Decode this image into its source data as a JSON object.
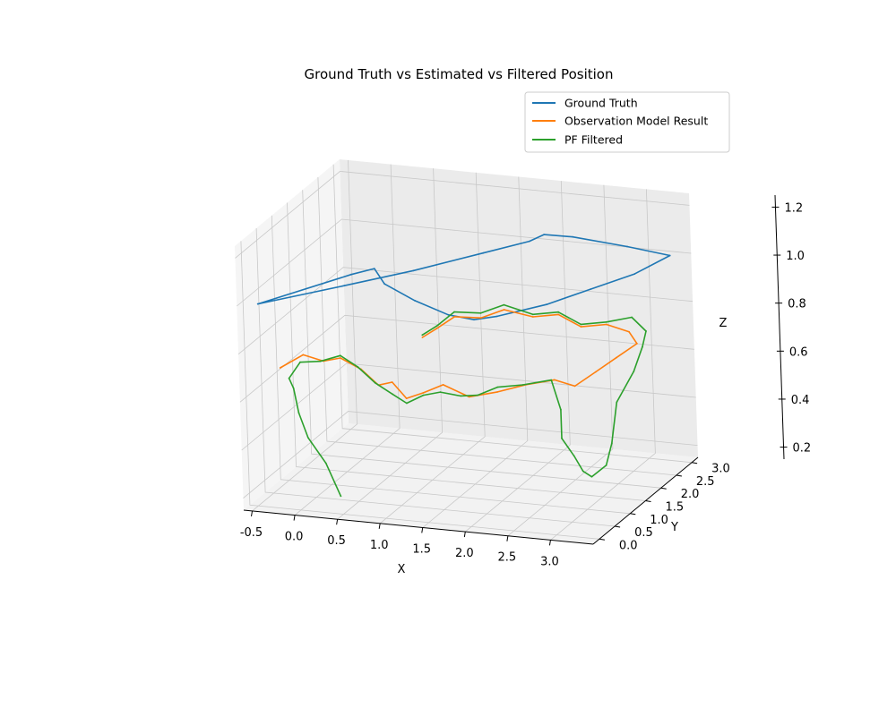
{
  "chart_data": {
    "type": "line",
    "projection": "3d",
    "title": "Ground Truth vs Estimated vs Filtered Position",
    "xlabel": "X",
    "ylabel": "Y",
    "zlabel": "Z",
    "xlim": [
      -0.6,
      3.5
    ],
    "ylim": [
      -0.2,
      3.2
    ],
    "zlim": [
      0.15,
      1.25
    ],
    "x_ticks": [
      "-0.5",
      "0.0",
      "0.5",
      "1.0",
      "1.5",
      "2.0",
      "2.5",
      "3.0"
    ],
    "y_ticks": [
      "0.0",
      "0.5",
      "1.0",
      "1.5",
      "2.0",
      "2.5",
      "3.0"
    ],
    "z_ticks": [
      "0.2",
      "0.4",
      "0.6",
      "0.8",
      "1.0",
      "1.2"
    ],
    "grid": true,
    "legend_position": "top-right",
    "series": [
      {
        "name": "Ground Truth",
        "color": "#1f77b4",
        "points": [
          {
            "x": -0.5,
            "y": 0.2,
            "z": 0.97
          },
          {
            "x": 0.3,
            "y": 0.8,
            "z": 1.01
          },
          {
            "x": 0.9,
            "y": 1.4,
            "z": 1.03
          },
          {
            "x": 1.5,
            "y": 2.0,
            "z": 1.06
          },
          {
            "x": 1.9,
            "y": 2.4,
            "z": 1.08
          },
          {
            "x": 2.0,
            "y": 2.6,
            "z": 1.09
          },
          {
            "x": 2.3,
            "y": 2.7,
            "z": 1.08
          },
          {
            "x": 2.9,
            "y": 2.8,
            "z": 1.05
          },
          {
            "x": 3.4,
            "y": 2.8,
            "z": 1.03
          },
          {
            "x": 3.2,
            "y": 2.2,
            "z": 1.01
          },
          {
            "x": 2.9,
            "y": 1.6,
            "z": 1.0
          },
          {
            "x": 2.6,
            "y": 1.0,
            "z": 0.99
          },
          {
            "x": 2.2,
            "y": 0.5,
            "z": 0.98
          },
          {
            "x": 2.0,
            "y": 0.3,
            "z": 0.98
          },
          {
            "x": 1.7,
            "y": 0.3,
            "z": 0.99
          },
          {
            "x": 1.2,
            "y": 0.6,
            "z": 1.0
          },
          {
            "x": 0.7,
            "y": 1.0,
            "z": 1.01
          },
          {
            "x": 0.4,
            "y": 1.5,
            "z": 1.01
          },
          {
            "x": 0.2,
            "y": 1.3,
            "z": 1.0
          },
          {
            "x": -0.5,
            "y": 0.2,
            "z": 0.97
          }
        ]
      },
      {
        "name": "Observation Model Result",
        "color": "#ff7f0e",
        "points": [
          {
            "x": -0.3,
            "y": 0.3,
            "z": 0.7
          },
          {
            "x": -0.1,
            "y": 0.5,
            "z": 0.74
          },
          {
            "x": 0.1,
            "y": 0.6,
            "z": 0.71
          },
          {
            "x": 0.3,
            "y": 0.6,
            "z": 0.73
          },
          {
            "x": 0.5,
            "y": 0.7,
            "z": 0.68
          },
          {
            "x": 0.7,
            "y": 0.7,
            "z": 0.62
          },
          {
            "x": 0.9,
            "y": 0.6,
            "z": 0.65
          },
          {
            "x": 1.1,
            "y": 0.5,
            "z": 0.6
          },
          {
            "x": 1.3,
            "y": 0.5,
            "z": 0.63
          },
          {
            "x": 1.5,
            "y": 0.6,
            "z": 0.66
          },
          {
            "x": 1.8,
            "y": 0.6,
            "z": 0.62
          },
          {
            "x": 2.1,
            "y": 0.7,
            "z": 0.64
          },
          {
            "x": 2.4,
            "y": 0.8,
            "z": 0.67
          },
          {
            "x": 2.7,
            "y": 0.9,
            "z": 0.69
          },
          {
            "x": 2.9,
            "y": 1.0,
            "z": 0.66
          },
          {
            "x": 3.0,
            "y": 1.4,
            "z": 0.68
          },
          {
            "x": 3.1,
            "y": 1.8,
            "z": 0.7
          },
          {
            "x": 3.2,
            "y": 2.2,
            "z": 0.72
          },
          {
            "x": 3.0,
            "y": 2.5,
            "z": 0.73
          },
          {
            "x": 2.7,
            "y": 2.6,
            "z": 0.74
          },
          {
            "x": 2.4,
            "y": 2.6,
            "z": 0.72
          },
          {
            "x": 2.1,
            "y": 2.7,
            "z": 0.75
          },
          {
            "x": 1.8,
            "y": 2.7,
            "z": 0.73
          },
          {
            "x": 1.5,
            "y": 2.6,
            "z": 0.76
          },
          {
            "x": 1.3,
            "y": 2.4,
            "z": 0.74
          },
          {
            "x": 1.1,
            "y": 2.1,
            "z": 0.77
          },
          {
            "x": 1.0,
            "y": 1.8,
            "z": 0.75
          },
          {
            "x": 0.9,
            "y": 1.6,
            "z": 0.73
          }
        ]
      },
      {
        "name": "PF Filtered",
        "color": "#2ca02c",
        "points": [
          {
            "x": 0.4,
            "y": 0.2,
            "z": 0.2
          },
          {
            "x": 0.2,
            "y": 0.3,
            "z": 0.32
          },
          {
            "x": 0.0,
            "y": 0.3,
            "z": 0.42
          },
          {
            "x": -0.1,
            "y": 0.3,
            "z": 0.52
          },
          {
            "x": -0.15,
            "y": 0.3,
            "z": 0.62
          },
          {
            "x": -0.2,
            "y": 0.3,
            "z": 0.66
          },
          {
            "x": -0.1,
            "y": 0.4,
            "z": 0.72
          },
          {
            "x": 0.1,
            "y": 0.5,
            "z": 0.72
          },
          {
            "x": 0.3,
            "y": 0.6,
            "z": 0.74
          },
          {
            "x": 0.5,
            "y": 0.6,
            "z": 0.7
          },
          {
            "x": 0.7,
            "y": 0.6,
            "z": 0.64
          },
          {
            "x": 0.9,
            "y": 0.6,
            "z": 0.6
          },
          {
            "x": 1.1,
            "y": 0.5,
            "z": 0.58
          },
          {
            "x": 1.3,
            "y": 0.5,
            "z": 0.62
          },
          {
            "x": 1.5,
            "y": 0.5,
            "z": 0.64
          },
          {
            "x": 1.7,
            "y": 0.6,
            "z": 0.62
          },
          {
            "x": 1.9,
            "y": 0.6,
            "z": 0.63
          },
          {
            "x": 2.1,
            "y": 0.7,
            "z": 0.66
          },
          {
            "x": 2.4,
            "y": 0.7,
            "z": 0.68
          },
          {
            "x": 2.7,
            "y": 0.8,
            "z": 0.7
          },
          {
            "x": 2.8,
            "y": 0.8,
            "z": 0.58
          },
          {
            "x": 2.8,
            "y": 0.8,
            "z": 0.46
          },
          {
            "x": 2.9,
            "y": 0.9,
            "z": 0.38
          },
          {
            "x": 3.0,
            "y": 0.9,
            "z": 0.32
          },
          {
            "x": 3.1,
            "y": 0.9,
            "z": 0.3
          },
          {
            "x": 3.2,
            "y": 1.1,
            "z": 0.33
          },
          {
            "x": 3.2,
            "y": 1.3,
            "z": 0.4
          },
          {
            "x": 3.2,
            "y": 1.5,
            "z": 0.55
          },
          {
            "x": 3.3,
            "y": 1.8,
            "z": 0.65
          },
          {
            "x": 3.3,
            "y": 2.1,
            "z": 0.72
          },
          {
            "x": 3.2,
            "y": 2.5,
            "z": 0.74
          },
          {
            "x": 3.0,
            "y": 2.6,
            "z": 0.78
          },
          {
            "x": 2.7,
            "y": 2.6,
            "z": 0.75
          },
          {
            "x": 2.4,
            "y": 2.6,
            "z": 0.73
          },
          {
            "x": 2.1,
            "y": 2.7,
            "z": 0.76
          },
          {
            "x": 1.8,
            "y": 2.7,
            "z": 0.74
          },
          {
            "x": 1.5,
            "y": 2.6,
            "z": 0.78
          },
          {
            "x": 1.3,
            "y": 2.4,
            "z": 0.76
          },
          {
            "x": 1.1,
            "y": 2.1,
            "z": 0.79
          },
          {
            "x": 1.0,
            "y": 1.8,
            "z": 0.76
          },
          {
            "x": 0.9,
            "y": 1.6,
            "z": 0.74
          }
        ]
      }
    ]
  }
}
